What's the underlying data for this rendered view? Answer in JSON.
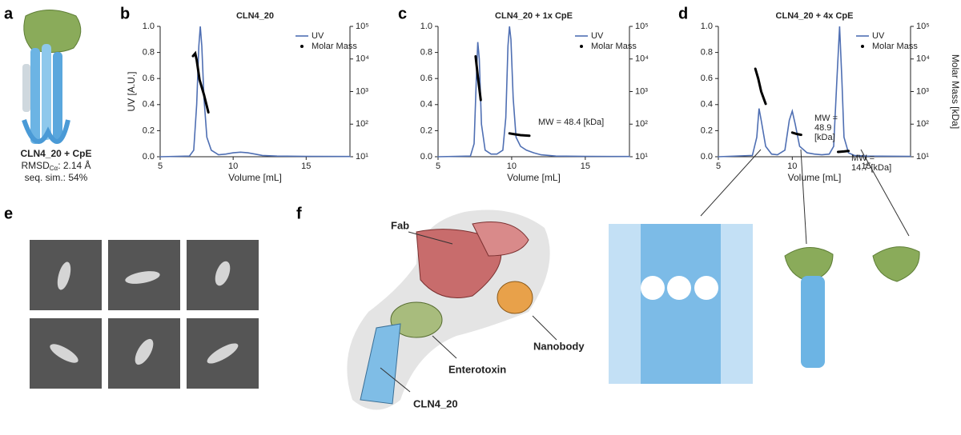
{
  "panel_labels": [
    "a",
    "b",
    "c",
    "d",
    "e",
    "f"
  ],
  "structure": {
    "name": "CLN4_20 + CpE",
    "rmsd": "RMSD",
    "rmsd_sub": "Cα",
    "rmsd_value": ": 2.14 Å",
    "seq_sim": "seq. sim.: 54%"
  },
  "f_labels": {
    "fab": "Fab",
    "nanobody": "Nanobody",
    "enterotoxin": "Enterotoxin",
    "cln": "CLN4_20"
  },
  "chart_data": [
    {
      "type": "line",
      "title": "CLN4_20",
      "x_label": "Volume [mL]",
      "y_label": "UV [A.U.]",
      "xlim": [
        5,
        18
      ],
      "xticks": [
        5,
        10,
        15
      ],
      "ylim": [
        0,
        1
      ],
      "yticks": [
        {
          "value": 0,
          "label": "0.0"
        },
        0.2,
        0.4,
        0.6,
        0.8,
        {
          "value": 1,
          "label": "1.0"
        }
      ],
      "y2lim": [
        10,
        100000
      ],
      "y2scale": "log",
      "y2ticks": [
        {
          "value": 10,
          "label": "10¹"
        },
        {
          "value": 100,
          "label": "10²"
        },
        {
          "value": 1000,
          "label": "10³"
        },
        {
          "value": 10000,
          "label": "10⁴"
        },
        {
          "value": 100000,
          "label": "10⁵"
        }
      ],
      "legend": "upper right",
      "series": [
        {
          "name": "UV",
          "color": "#4f6fb3",
          "x": [
            5,
            7.0,
            7.3,
            7.5,
            7.65,
            7.75,
            7.85,
            8.0,
            8.2,
            8.5,
            9,
            9.5,
            10,
            10.5,
            11,
            11.5,
            12,
            13,
            15,
            18
          ],
          "values": [
            0,
            0.005,
            0.05,
            0.4,
            0.85,
            1.0,
            0.85,
            0.45,
            0.15,
            0.05,
            0.015,
            0.02,
            0.03,
            0.035,
            0.03,
            0.02,
            0.01,
            0.005,
            0.003,
            0.002
          ]
        },
        {
          "name": "Molar Mass",
          "color": "#000000",
          "axis": "y2",
          "x": [
            7.25,
            7.4,
            7.5,
            7.7,
            8.0,
            8.3
          ],
          "values": [
            12300,
            14800,
            9300,
            2300,
            800,
            230
          ]
        }
      ]
    },
    {
      "type": "line",
      "title": "CLN4_20 + 1x CpE",
      "x_label": "Volume [mL]",
      "xlim": [
        5,
        18
      ],
      "xticks": [
        5,
        10,
        15
      ],
      "ylim": [
        0,
        1
      ],
      "yticks": [
        {
          "value": 0,
          "label": "0.0"
        },
        0.2,
        0.4,
        0.6,
        0.8,
        {
          "value": 1,
          "label": "1.0"
        }
      ],
      "y2lim": [
        10,
        100000
      ],
      "y2scale": "log",
      "y2ticks": [
        {
          "value": 10,
          "label": "10¹"
        },
        {
          "value": 100,
          "label": "10²"
        },
        {
          "value": 1000,
          "label": "10³"
        },
        {
          "value": 10000,
          "label": "10⁴"
        },
        {
          "value": 100000,
          "label": "10⁵"
        }
      ],
      "legend": "upper right",
      "annotations": [
        {
          "lines": [
            "MW = 48.4 [kDa]"
          ]
        }
      ],
      "series": [
        {
          "name": "UV",
          "color": "#4f6fb3",
          "x": [
            5,
            7.2,
            7.45,
            7.6,
            7.7,
            7.8,
            7.95,
            8.2,
            8.6,
            9,
            9.4,
            9.6,
            9.75,
            9.85,
            9.95,
            10.1,
            10.3,
            10.6,
            11,
            11.5,
            12,
            13,
            15,
            18
          ],
          "values": [
            0,
            0.005,
            0.1,
            0.6,
            0.88,
            0.75,
            0.25,
            0.05,
            0.02,
            0.02,
            0.05,
            0.3,
            0.85,
            1.0,
            0.9,
            0.45,
            0.15,
            0.08,
            0.05,
            0.03,
            0.015,
            0.005,
            0.003,
            0.002
          ]
        },
        {
          "name": "Molar Mass",
          "color": "#000000",
          "axis": "y2",
          "x": [
            7.55,
            7.7,
            7.9,
            null,
            9.85,
            10.2,
            10.6,
            11.2
          ],
          "values": [
            12000,
            3000,
            550,
            null,
            52,
            49,
            46,
            44
          ]
        }
      ]
    },
    {
      "type": "line",
      "title": "CLN4_20 + 4x CpE",
      "x_label": "Volume [mL]",
      "y2_label": "Molar Mass [kDa]",
      "xlim": [
        5,
        18
      ],
      "xticks": [
        5,
        10,
        15
      ],
      "ylim": [
        0,
        1
      ],
      "yticks": [
        {
          "value": 0,
          "label": "0.0"
        },
        0.2,
        0.4,
        0.6,
        0.8,
        {
          "value": 1,
          "label": "1.0"
        }
      ],
      "y2lim": [
        10,
        100000
      ],
      "y2scale": "log",
      "y2ticks": [
        {
          "value": 10,
          "label": "10¹"
        },
        {
          "value": 100,
          "label": "10²"
        },
        {
          "value": 1000,
          "label": "10³"
        },
        {
          "value": 10000,
          "label": "10⁴"
        },
        {
          "value": 100000,
          "label": "10⁵"
        }
      ],
      "legend": "upper right",
      "annotations": [
        {
          "lines": [
            "MW =",
            "48.9",
            "[kDa]"
          ]
        },
        {
          "lines": [
            "MW =",
            "14.7 [kDa]"
          ]
        }
      ],
      "series": [
        {
          "name": "UV",
          "color": "#4f6fb3",
          "x": [
            5,
            7.3,
            7.6,
            7.75,
            7.9,
            8.2,
            8.6,
            9,
            9.5,
            9.8,
            10,
            10.2,
            10.5,
            11,
            11.5,
            12,
            12.5,
            12.8,
            13.0,
            13.2,
            13.35,
            13.5,
            13.8,
            14.2,
            15,
            18
          ],
          "values": [
            0,
            0.01,
            0.15,
            0.37,
            0.28,
            0.08,
            0.02,
            0.015,
            0.05,
            0.28,
            0.35,
            0.25,
            0.08,
            0.03,
            0.02,
            0.015,
            0.02,
            0.08,
            0.55,
            1.0,
            0.6,
            0.15,
            0.03,
            0.01,
            0.005,
            0.003
          ]
        },
        {
          "name": "Molar Mass",
          "color": "#000000",
          "axis": "y2",
          "x": [
            7.5,
            7.7,
            7.9,
            8.2,
            null,
            10.0,
            10.3,
            10.6,
            null,
            13.1,
            13.5,
            13.8
          ],
          "values": [
            5000,
            2500,
            1000,
            420,
            null,
            55,
            50,
            47,
            null,
            14,
            14.5,
            15
          ]
        }
      ]
    }
  ]
}
